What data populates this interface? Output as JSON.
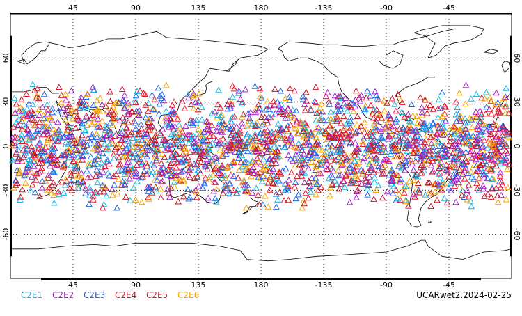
{
  "map": {
    "projection": "cylindrical equidistant",
    "center_lon": 180,
    "lon_range": [
      0,
      360
    ],
    "lat_range": [
      -90,
      90
    ],
    "gridlines": "dotted",
    "lon_ticks": [
      "45",
      "90",
      "135",
      "180",
      "-135",
      "-90",
      "-45"
    ],
    "lat_ticks": [
      "60",
      "30",
      "0",
      "-30",
      "-60"
    ],
    "coastline_color": "#000000"
  },
  "legend": {
    "items": [
      {
        "label": "C2E1",
        "color": "#14b4e6"
      },
      {
        "label": "C2E2",
        "color": "#a020c8"
      },
      {
        "label": "C2E3",
        "color": "#1e64e6"
      },
      {
        "label": "C2E4",
        "color": "#c8141e"
      },
      {
        "label": "C2E5",
        "color": "#e61432"
      },
      {
        "label": "C2E6",
        "color": "#f5a500"
      }
    ]
  },
  "product_stamp": "UCARwet2.2024-02-25",
  "observations": {
    "marker": "open-triangle",
    "lat_band": [
      -42,
      42
    ],
    "description_note": "dense tropical coverage of COSMIC-2 occultations"
  }
}
